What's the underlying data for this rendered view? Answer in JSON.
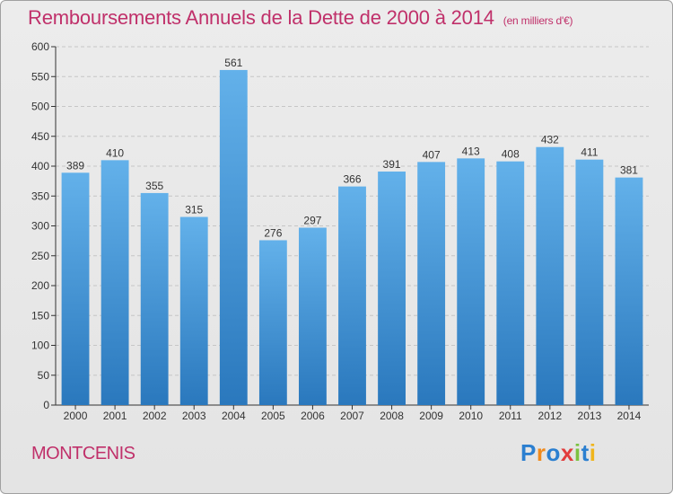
{
  "title": "Remboursements Annuels de la Dette de 2000 à 2014",
  "subtitle": "(en milliers d'€)",
  "place": "MONTCENIS",
  "logo": {
    "text": "Proxiti",
    "letters": [
      "P",
      "r",
      "o",
      "x",
      "i",
      "t",
      "i"
    ],
    "colors": [
      "#2b7fd0",
      "#f08a1c",
      "#2b7fd0",
      "#e23c3c",
      "#7cc242",
      "#2b7fd0",
      "#f0b51c"
    ]
  },
  "colors": {
    "bar_top": "#63b1ea",
    "bar_bottom": "#2a78bd",
    "accent": "#c0306a",
    "grid": "#c6c6c6",
    "axis": "#333333"
  },
  "chart_data": {
    "type": "bar",
    "title": "Remboursements Annuels de la Dette de 2000 à 2014",
    "xlabel": "",
    "ylabel": "",
    "ylim": [
      0,
      600
    ],
    "yticks": [
      0,
      50,
      100,
      150,
      200,
      250,
      300,
      350,
      400,
      450,
      500,
      550,
      600
    ],
    "grid": "dashed",
    "categories": [
      "2000",
      "2001",
      "2002",
      "2003",
      "2004",
      "2005",
      "2006",
      "2007",
      "2008",
      "2009",
      "2010",
      "2011",
      "2012",
      "2013",
      "2014"
    ],
    "values": [
      389,
      410,
      355,
      315,
      561,
      276,
      297,
      366,
      391,
      407,
      413,
      408,
      432,
      411,
      381
    ]
  }
}
